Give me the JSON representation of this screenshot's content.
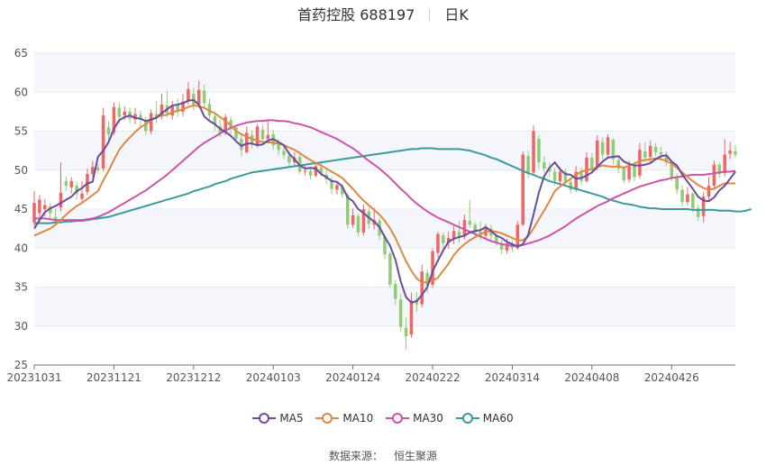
{
  "header": {
    "title": "首药控股 688197",
    "period": "日K"
  },
  "source": {
    "label": "数据来源：",
    "name": "恒生聚源"
  },
  "colors": {
    "up": "#ee6666",
    "down": "#91cc75",
    "MA5": "#6a4c9c",
    "MA10": "#dd8844",
    "MA30": "#cc55aa",
    "MA60": "#3c9a9c",
    "grid": "#e6e9f2",
    "band": "#f4f6fb"
  },
  "chart_data": {
    "type": "candlestick",
    "ylim": [
      25,
      65
    ],
    "yticks": [
      25,
      30,
      35,
      40,
      45,
      50,
      55,
      60,
      65
    ],
    "x_tick_labels": [
      "20231031",
      "20231121",
      "20231212",
      "20240103",
      "20240124",
      "20240222",
      "20240314",
      "20240408",
      "20240426"
    ],
    "x_tick_index": [
      0,
      15,
      30,
      45,
      60,
      75,
      90,
      105,
      120
    ],
    "legend": [
      {
        "name": "MA5",
        "color": "#6a4c9c"
      },
      {
        "name": "MA10",
        "color": "#dd8844"
      },
      {
        "name": "MA30",
        "color": "#cc55aa"
      },
      {
        "name": "MA60",
        "color": "#3c9a9c"
      }
    ],
    "candles": [
      {
        "o": 43.3,
        "c": 45.8,
        "h": 47.3,
        "l": 42.8
      },
      {
        "o": 44.5,
        "c": 46.2,
        "h": 46.8,
        "l": 43.3
      },
      {
        "o": 45.0,
        "c": 45.5,
        "h": 46.3,
        "l": 44.1
      },
      {
        "o": 45.3,
        "c": 44.5,
        "h": 45.8,
        "l": 43.8
      },
      {
        "o": 44.0,
        "c": 43.2,
        "h": 45.1,
        "l": 42.8
      },
      {
        "o": 45.2,
        "c": 47.1,
        "h": 51.0,
        "l": 44.7
      },
      {
        "o": 48.6,
        "c": 48.0,
        "h": 49.2,
        "l": 47.3
      },
      {
        "o": 47.8,
        "c": 48.6,
        "h": 49.1,
        "l": 47.0
      },
      {
        "o": 48.0,
        "c": 47.0,
        "h": 48.5,
        "l": 46.2
      },
      {
        "o": 46.3,
        "c": 47.0,
        "h": 48.6,
        "l": 46.0
      },
      {
        "o": 47.2,
        "c": 49.5,
        "h": 50.2,
        "l": 46.8
      },
      {
        "o": 49.5,
        "c": 50.4,
        "h": 51.2,
        "l": 49.1
      },
      {
        "o": 50.3,
        "c": 50.0,
        "h": 50.8,
        "l": 49.5
      },
      {
        "o": 50.2,
        "c": 57.0,
        "h": 58.0,
        "l": 49.8
      },
      {
        "o": 55.5,
        "c": 54.6,
        "h": 56.3,
        "l": 53.8
      },
      {
        "o": 54.8,
        "c": 58.1,
        "h": 58.7,
        "l": 54.5
      },
      {
        "o": 58.0,
        "c": 56.8,
        "h": 58.6,
        "l": 56.0
      },
      {
        "o": 57.0,
        "c": 57.5,
        "h": 58.2,
        "l": 56.4
      },
      {
        "o": 57.5,
        "c": 56.6,
        "h": 58.0,
        "l": 56.0
      },
      {
        "o": 56.5,
        "c": 57.2,
        "h": 58.0,
        "l": 55.9
      },
      {
        "o": 57.1,
        "c": 56.5,
        "h": 57.6,
        "l": 55.4
      },
      {
        "o": 56.4,
        "c": 55.0,
        "h": 56.8,
        "l": 54.5
      },
      {
        "o": 55.0,
        "c": 57.3,
        "h": 57.8,
        "l": 54.6
      },
      {
        "o": 57.2,
        "c": 56.7,
        "h": 58.8,
        "l": 56.0
      },
      {
        "o": 56.9,
        "c": 58.4,
        "h": 59.8,
        "l": 56.5
      },
      {
        "o": 58.3,
        "c": 57.3,
        "h": 60.2,
        "l": 56.8
      },
      {
        "o": 57.0,
        "c": 58.3,
        "h": 58.9,
        "l": 56.5
      },
      {
        "o": 58.4,
        "c": 57.5,
        "h": 59.2,
        "l": 56.8
      },
      {
        "o": 57.5,
        "c": 58.8,
        "h": 59.8,
        "l": 56.9
      },
      {
        "o": 58.9,
        "c": 60.4,
        "h": 61.3,
        "l": 58.4
      },
      {
        "o": 59.8,
        "c": 58.4,
        "h": 60.6,
        "l": 57.6
      },
      {
        "o": 58.5,
        "c": 60.3,
        "h": 61.5,
        "l": 58.0
      },
      {
        "o": 60.2,
        "c": 58.6,
        "h": 61.0,
        "l": 57.8
      },
      {
        "o": 58.5,
        "c": 57.0,
        "h": 59.2,
        "l": 56.2
      },
      {
        "o": 56.9,
        "c": 55.8,
        "h": 57.3,
        "l": 55.0
      },
      {
        "o": 55.6,
        "c": 54.7,
        "h": 56.5,
        "l": 54.2
      },
      {
        "o": 54.9,
        "c": 56.8,
        "h": 57.2,
        "l": 54.5
      },
      {
        "o": 56.4,
        "c": 55.3,
        "h": 56.9,
        "l": 54.6
      },
      {
        "o": 55.5,
        "c": 54.0,
        "h": 55.8,
        "l": 53.5
      },
      {
        "o": 54.0,
        "c": 52.6,
        "h": 54.6,
        "l": 51.8
      },
      {
        "o": 52.3,
        "c": 54.8,
        "h": 55.6,
        "l": 52.1
      },
      {
        "o": 54.5,
        "c": 53.5,
        "h": 55.1,
        "l": 52.8
      },
      {
        "o": 53.3,
        "c": 55.6,
        "h": 55.9,
        "l": 52.9
      },
      {
        "o": 55.2,
        "c": 54.0,
        "h": 55.8,
        "l": 53.5
      },
      {
        "o": 54.0,
        "c": 54.5,
        "h": 56.5,
        "l": 53.4
      },
      {
        "o": 54.6,
        "c": 53.2,
        "h": 55.2,
        "l": 52.6
      },
      {
        "o": 53.3,
        "c": 52.6,
        "h": 54.0,
        "l": 51.9
      },
      {
        "o": 52.5,
        "c": 51.9,
        "h": 53.1,
        "l": 51.4
      },
      {
        "o": 51.9,
        "c": 51.0,
        "h": 52.4,
        "l": 50.5
      },
      {
        "o": 51.0,
        "c": 51.6,
        "h": 52.3,
        "l": 50.6
      },
      {
        "o": 51.7,
        "c": 49.8,
        "h": 52.2,
        "l": 49.5
      },
      {
        "o": 49.8,
        "c": 49.9,
        "h": 50.6,
        "l": 49.3
      },
      {
        "o": 49.9,
        "c": 49.3,
        "h": 50.2,
        "l": 48.8
      },
      {
        "o": 49.3,
        "c": 50.5,
        "h": 51.0,
        "l": 49.1
      },
      {
        "o": 50.3,
        "c": 49.5,
        "h": 51.2,
        "l": 49.2
      },
      {
        "o": 49.4,
        "c": 48.8,
        "h": 50.0,
        "l": 48.2
      },
      {
        "o": 48.6,
        "c": 47.6,
        "h": 49.1,
        "l": 46.9
      },
      {
        "o": 47.5,
        "c": 48.1,
        "h": 48.6,
        "l": 46.9
      },
      {
        "o": 47.9,
        "c": 46.9,
        "h": 48.3,
        "l": 46.5
      },
      {
        "o": 46.8,
        "c": 43.0,
        "h": 47.1,
        "l": 42.5
      },
      {
        "o": 43.0,
        "c": 44.2,
        "h": 45.1,
        "l": 42.6
      },
      {
        "o": 44.1,
        "c": 42.0,
        "h": 44.4,
        "l": 41.5
      },
      {
        "o": 42.0,
        "c": 45.0,
        "h": 45.6,
        "l": 41.6
      },
      {
        "o": 44.7,
        "c": 43.1,
        "h": 45.2,
        "l": 42.5
      },
      {
        "o": 43.0,
        "c": 43.6,
        "h": 45.2,
        "l": 42.4
      },
      {
        "o": 43.5,
        "c": 41.6,
        "h": 43.9,
        "l": 41.0
      },
      {
        "o": 41.5,
        "c": 39.2,
        "h": 41.8,
        "l": 38.6
      },
      {
        "o": 39.3,
        "c": 35.3,
        "h": 39.6,
        "l": 34.9
      },
      {
        "o": 35.4,
        "c": 33.5,
        "h": 35.9,
        "l": 32.7
      },
      {
        "o": 33.4,
        "c": 29.9,
        "h": 34.1,
        "l": 29.3
      },
      {
        "o": 29.8,
        "c": 28.7,
        "h": 31.1,
        "l": 27.0
      },
      {
        "o": 28.9,
        "c": 33.3,
        "h": 34.3,
        "l": 28.5
      },
      {
        "o": 33.4,
        "c": 32.8,
        "h": 34.4,
        "l": 31.8
      },
      {
        "o": 32.8,
        "c": 37.0,
        "h": 37.9,
        "l": 32.4
      },
      {
        "o": 36.8,
        "c": 35.2,
        "h": 37.3,
        "l": 34.2
      },
      {
        "o": 35.3,
        "c": 39.6,
        "h": 40.0,
        "l": 34.9
      },
      {
        "o": 39.4,
        "c": 41.8,
        "h": 42.1,
        "l": 38.8
      },
      {
        "o": 41.6,
        "c": 40.6,
        "h": 42.0,
        "l": 39.6
      },
      {
        "o": 40.7,
        "c": 41.3,
        "h": 42.1,
        "l": 39.9
      },
      {
        "o": 41.2,
        "c": 42.2,
        "h": 43.0,
        "l": 40.5
      },
      {
        "o": 42.1,
        "c": 41.4,
        "h": 43.5,
        "l": 40.7
      },
      {
        "o": 41.5,
        "c": 43.6,
        "h": 44.3,
        "l": 41.1
      },
      {
        "o": 43.5,
        "c": 43.0,
        "h": 46.2,
        "l": 42.6
      },
      {
        "o": 43.0,
        "c": 42.0,
        "h": 43.3,
        "l": 41.4
      },
      {
        "o": 42.1,
        "c": 41.6,
        "h": 43.4,
        "l": 41.0
      },
      {
        "o": 41.6,
        "c": 42.5,
        "h": 43.1,
        "l": 41.2
      },
      {
        "o": 42.5,
        "c": 41.6,
        "h": 43.0,
        "l": 41.0
      },
      {
        "o": 41.6,
        "c": 40.7,
        "h": 41.9,
        "l": 40.3
      },
      {
        "o": 40.6,
        "c": 39.8,
        "h": 41.1,
        "l": 39.2
      },
      {
        "o": 39.7,
        "c": 40.6,
        "h": 41.2,
        "l": 39.3
      },
      {
        "o": 40.5,
        "c": 40.0,
        "h": 41.0,
        "l": 39.5
      },
      {
        "o": 40.0,
        "c": 43.0,
        "h": 43.5,
        "l": 39.8
      },
      {
        "o": 43.0,
        "c": 52.0,
        "h": 52.4,
        "l": 42.8
      },
      {
        "o": 51.8,
        "c": 49.6,
        "h": 52.5,
        "l": 49.0
      },
      {
        "o": 49.7,
        "c": 55.0,
        "h": 55.8,
        "l": 49.4
      },
      {
        "o": 54.0,
        "c": 51.0,
        "h": 54.5,
        "l": 50.2
      },
      {
        "o": 51.0,
        "c": 50.2,
        "h": 51.8,
        "l": 49.6
      },
      {
        "o": 50.3,
        "c": 49.8,
        "h": 51.0,
        "l": 49.1
      },
      {
        "o": 49.8,
        "c": 48.6,
        "h": 50.3,
        "l": 48.0
      },
      {
        "o": 48.6,
        "c": 49.8,
        "h": 50.4,
        "l": 48.1
      },
      {
        "o": 49.8,
        "c": 48.5,
        "h": 50.2,
        "l": 48.0
      },
      {
        "o": 48.5,
        "c": 47.5,
        "h": 49.0,
        "l": 47.0
      },
      {
        "o": 47.5,
        "c": 49.8,
        "h": 50.5,
        "l": 47.2
      },
      {
        "o": 49.6,
        "c": 48.6,
        "h": 50.3,
        "l": 48.1
      },
      {
        "o": 48.6,
        "c": 51.6,
        "h": 52.3,
        "l": 48.4
      },
      {
        "o": 51.6,
        "c": 50.2,
        "h": 52.2,
        "l": 49.8
      },
      {
        "o": 50.3,
        "c": 53.8,
        "h": 54.5,
        "l": 50.0
      },
      {
        "o": 53.6,
        "c": 52.0,
        "h": 54.2,
        "l": 51.4
      },
      {
        "o": 52.0,
        "c": 54.2,
        "h": 54.6,
        "l": 51.5
      },
      {
        "o": 53.9,
        "c": 51.4,
        "h": 54.1,
        "l": 50.7
      },
      {
        "o": 51.3,
        "c": 50.2,
        "h": 51.8,
        "l": 49.6
      },
      {
        "o": 50.2,
        "c": 48.7,
        "h": 50.5,
        "l": 48.3
      },
      {
        "o": 48.8,
        "c": 50.5,
        "h": 51.2,
        "l": 48.4
      },
      {
        "o": 50.6,
        "c": 49.1,
        "h": 51.1,
        "l": 48.6
      },
      {
        "o": 49.3,
        "c": 52.6,
        "h": 53.5,
        "l": 48.9
      },
      {
        "o": 52.4,
        "c": 51.6,
        "h": 53.6,
        "l": 51.0
      },
      {
        "o": 51.7,
        "c": 53.1,
        "h": 53.8,
        "l": 50.9
      },
      {
        "o": 53.0,
        "c": 52.3,
        "h": 53.5,
        "l": 51.8
      },
      {
        "o": 52.3,
        "c": 52.0,
        "h": 53.0,
        "l": 51.4
      },
      {
        "o": 52.0,
        "c": 51.0,
        "h": 52.4,
        "l": 50.5
      },
      {
        "o": 51.0,
        "c": 49.1,
        "h": 51.2,
        "l": 48.6
      },
      {
        "o": 49.1,
        "c": 47.5,
        "h": 49.6,
        "l": 46.9
      },
      {
        "o": 47.5,
        "c": 45.9,
        "h": 48.0,
        "l": 45.3
      },
      {
        "o": 45.9,
        "c": 46.9,
        "h": 47.8,
        "l": 45.5
      },
      {
        "o": 47.0,
        "c": 45.1,
        "h": 47.2,
        "l": 44.6
      },
      {
        "o": 45.1,
        "c": 44.0,
        "h": 45.6,
        "l": 43.5
      },
      {
        "o": 44.1,
        "c": 46.6,
        "h": 47.2,
        "l": 43.3
      },
      {
        "o": 46.6,
        "c": 48.0,
        "h": 49.1,
        "l": 45.9
      },
      {
        "o": 48.0,
        "c": 50.7,
        "h": 51.2,
        "l": 47.6
      },
      {
        "o": 50.7,
        "c": 49.5,
        "h": 51.0,
        "l": 49.0
      },
      {
        "o": 49.6,
        "c": 52.0,
        "h": 54.0,
        "l": 49.2
      },
      {
        "o": 52.1,
        "c": 52.5,
        "h": 53.6,
        "l": 51.4
      },
      {
        "o": 52.4,
        "c": 52.0,
        "h": 53.2,
        "l": 51.6
      }
    ],
    "MA5": [
      42.5,
      43.6,
      44.6,
      45.1,
      45.4,
      45.8,
      46.2,
      46.6,
      47.3,
      47.7,
      48.3,
      48.5,
      51.7,
      52.5,
      53.6,
      55.3,
      56.4,
      56.8,
      57.0,
      56.7,
      56.6,
      56.3,
      56.5,
      56.7,
      57.3,
      57.8,
      58.3,
      58.4,
      58.6,
      58.9,
      59.0,
      58.4,
      56.9,
      56.3,
      55.9,
      55.3,
      54.9,
      54.4,
      53.7,
      53.1,
      53.4,
      53.4,
      53.2,
      53.3,
      53.8,
      54.0,
      53.6,
      53.2,
      52.1,
      51.4,
      50.6,
      50.2,
      50.3,
      50.2,
      49.5,
      49.1,
      48.6,
      48.5,
      47.9,
      46.5,
      46.0,
      45.0,
      44.5,
      43.9,
      43.4,
      42.7,
      41.4,
      40.3,
      38.5,
      35.7,
      33.7,
      33.0,
      33.2,
      34.0,
      35.0,
      37.0,
      38.4,
      39.7,
      40.8,
      41.2,
      41.4,
      41.6,
      42.0,
      42.2,
      42.3,
      42.7,
      42.2,
      41.6,
      41.3,
      40.8,
      40.5,
      40.2,
      40.5,
      41.7,
      44.3,
      47.1,
      49.2,
      50.3,
      51.0,
      50.1,
      49.5,
      49.4,
      48.9,
      49.0,
      49.3,
      49.7,
      50.4,
      51.1,
      51.6,
      51.7,
      51.8,
      51.1,
      50.8,
      50.6,
      50.6,
      50.7,
      50.9,
      51.4,
      51.8,
      51.9,
      51.1,
      50.6,
      49.4,
      48.5,
      47.6,
      46.6,
      46.1,
      46.0,
      46.5,
      47.4,
      48.0,
      48.9,
      49.8
    ],
    "MA10": [
      41.6,
      41.9,
      42.2,
      42.5,
      43.0,
      43.6,
      44.3,
      44.9,
      45.4,
      45.8,
      46.3,
      46.8,
      47.3,
      48.7,
      49.9,
      51.3,
      52.6,
      53.5,
      54.2,
      54.9,
      55.5,
      55.9,
      56.4,
      56.8,
      57.0,
      57.1,
      57.4,
      57.6,
      57.8,
      58.1,
      58.3,
      58.2,
      58.0,
      57.6,
      57.3,
      56.8,
      56.3,
      55.7,
      55.0,
      54.6,
      54.3,
      54.0,
      53.8,
      53.6,
      53.6,
      53.5,
      53.4,
      53.2,
      52.9,
      52.6,
      52.2,
      51.7,
      51.3,
      50.9,
      50.6,
      50.2,
      49.8,
      49.4,
      49.0,
      48.3,
      47.6,
      46.8,
      46.1,
      45.5,
      44.9,
      44.3,
      43.5,
      42.5,
      41.3,
      39.8,
      38.3,
      37.1,
      36.1,
      35.6,
      35.6,
      35.8,
      36.2,
      37.1,
      38.0,
      39.1,
      39.9,
      40.5,
      41.0,
      41.4,
      41.8,
      42.1,
      42.2,
      42.1,
      41.9,
      41.6,
      41.3,
      41.0,
      41.0,
      41.5,
      42.5,
      43.7,
      44.8,
      46.0,
      47.3,
      47.9,
      48.4,
      48.9,
      49.4,
      49.8,
      50.0,
      50.1,
      50.4,
      50.6,
      50.5,
      50.4,
      50.5,
      50.3,
      50.6,
      50.8,
      51.2,
      51.3,
      51.4,
      51.5,
      51.4,
      51.2,
      50.8,
      50.3,
      49.7,
      49.1,
      48.6,
      48.1,
      47.7,
      47.5,
      47.6,
      48.0,
      48.3,
      48.3,
      48.3
    ],
    "MA30": [
      43.8,
      43.8,
      43.8,
      43.7,
      43.6,
      43.6,
      43.6,
      43.6,
      43.6,
      43.6,
      43.7,
      43.8,
      44.0,
      44.3,
      44.6,
      45.0,
      45.4,
      45.8,
      46.2,
      46.6,
      47.0,
      47.4,
      47.9,
      48.4,
      48.9,
      49.4,
      50.0,
      50.6,
      51.2,
      51.8,
      52.4,
      53.0,
      53.5,
      53.9,
      54.3,
      54.7,
      55.1,
      55.4,
      55.7,
      55.9,
      56.1,
      56.2,
      56.3,
      56.3,
      56.4,
      56.4,
      56.3,
      56.3,
      56.2,
      56.0,
      55.9,
      55.7,
      55.5,
      55.2,
      54.9,
      54.6,
      54.3,
      54.0,
      53.6,
      53.2,
      52.8,
      52.3,
      51.7,
      51.2,
      50.7,
      50.2,
      49.6,
      49.0,
      48.3,
      47.6,
      47.0,
      46.3,
      45.7,
      45.2,
      44.7,
      44.3,
      43.9,
      43.6,
      43.3,
      43.0,
      42.7,
      42.4,
      42.1,
      41.8,
      41.5,
      41.2,
      40.9,
      40.7,
      40.5,
      40.4,
      40.3,
      40.3,
      40.4,
      40.6,
      40.8,
      41.0,
      41.3,
      41.6,
      42.0,
      42.4,
      42.8,
      43.3,
      43.8,
      44.2,
      44.6,
      45.0,
      45.4,
      45.7,
      46.0,
      46.4,
      46.7,
      47.0,
      47.3,
      47.6,
      47.9,
      48.1,
      48.3,
      48.5,
      48.7,
      48.8,
      49.0,
      49.1,
      49.2,
      49.3,
      49.4,
      49.4,
      49.4,
      49.5,
      49.6,
      49.7,
      49.8,
      49.8,
      49.9
    ],
    "MA60": [
      43.2,
      43.2,
      43.2,
      43.2,
      43.3,
      43.3,
      43.4,
      43.4,
      43.5,
      43.5,
      43.6,
      43.7,
      43.8,
      43.9,
      44.0,
      44.2,
      44.4,
      44.6,
      44.8,
      45.0,
      45.2,
      45.4,
      45.6,
      45.8,
      46.0,
      46.2,
      46.4,
      46.6,
      46.8,
      47.0,
      47.3,
      47.5,
      47.7,
      47.9,
      48.2,
      48.4,
      48.6,
      48.9,
      49.1,
      49.3,
      49.5,
      49.7,
      49.8,
      49.9,
      50.0,
      50.1,
      50.2,
      50.3,
      50.4,
      50.5,
      50.6,
      50.7,
      50.8,
      50.9,
      51.0,
      51.1,
      51.2,
      51.3,
      51.4,
      51.5,
      51.6,
      51.7,
      51.8,
      51.9,
      52.0,
      52.1,
      52.2,
      52.3,
      52.4,
      52.5,
      52.6,
      52.7,
      52.7,
      52.8,
      52.8,
      52.8,
      52.7,
      52.7,
      52.7,
      52.7,
      52.7,
      52.6,
      52.5,
      52.3,
      52.1,
      51.9,
      51.6,
      51.4,
      51.1,
      50.8,
      50.5,
      50.2,
      49.9,
      49.6,
      49.4,
      49.1,
      48.9,
      48.6,
      48.4,
      48.2,
      48.0,
      47.8,
      47.6,
      47.4,
      47.2,
      47.0,
      46.8,
      46.6,
      46.3,
      46.1,
      45.9,
      45.7,
      45.6,
      45.5,
      45.3,
      45.2,
      45.1,
      45.1,
      45.0,
      45.0,
      45.0,
      45.0,
      45.0,
      45.0,
      44.9,
      44.9,
      44.9,
      44.9,
      44.9,
      44.8,
      44.8,
      44.8,
      44.7,
      44.7,
      44.8,
      45.0
    ]
  }
}
